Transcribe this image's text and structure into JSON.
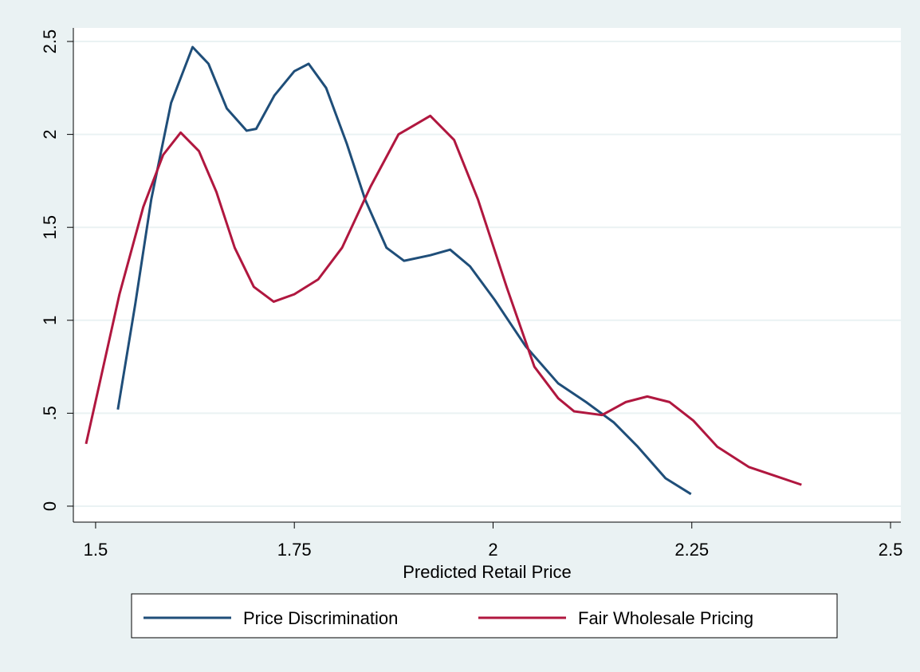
{
  "chart_data": {
    "type": "line",
    "x_label": "Predicted Retail Price",
    "xlim": [
      1.472,
      2.513
    ],
    "xticks": [
      1.5,
      1.75,
      2,
      2.25,
      2.5
    ],
    "ylim": [
      -0.086,
      2.573
    ],
    "yticks": [
      0,
      {
        "value": 0.5,
        "label": ".5"
      },
      1,
      1.5,
      2,
      2.5
    ],
    "grid": true,
    "legend": "bottom",
    "series": [
      {
        "name": "Price Discrimination",
        "color": "#1f4e79",
        "x": [
          1.528,
          1.55,
          1.57,
          1.595,
          1.622,
          1.642,
          1.665,
          1.69,
          1.702,
          1.725,
          1.75,
          1.768,
          1.79,
          1.816,
          1.839,
          1.866,
          1.888,
          1.921,
          1.946,
          1.971,
          2.002,
          2.041,
          2.082,
          2.117,
          2.152,
          2.182,
          2.217,
          2.249
        ],
        "values": [
          0.52,
          1.09,
          1.65,
          2.17,
          2.47,
          2.38,
          2.14,
          2.02,
          2.03,
          2.21,
          2.34,
          2.38,
          2.25,
          1.95,
          1.65,
          1.39,
          1.32,
          1.35,
          1.38,
          1.29,
          1.11,
          0.86,
          0.66,
          0.56,
          0.45,
          0.32,
          0.15,
          0.065
        ]
      },
      {
        "name": "Fair Wholesale Pricing",
        "color": "#b0173f",
        "x": [
          1.488,
          1.505,
          1.53,
          1.56,
          1.585,
          1.607,
          1.63,
          1.652,
          1.675,
          1.699,
          1.724,
          1.75,
          1.78,
          1.81,
          1.846,
          1.881,
          1.921,
          1.951,
          1.981,
          2.017,
          2.052,
          2.082,
          2.102,
          2.137,
          2.167,
          2.194,
          2.222,
          2.252,
          2.282,
          2.322,
          2.357,
          2.388
        ],
        "values": [
          0.335,
          0.66,
          1.14,
          1.61,
          1.89,
          2.01,
          1.91,
          1.69,
          1.39,
          1.18,
          1.1,
          1.14,
          1.22,
          1.39,
          1.72,
          2.0,
          2.1,
          1.97,
          1.65,
          1.18,
          0.75,
          0.58,
          0.51,
          0.49,
          0.56,
          0.59,
          0.56,
          0.46,
          0.32,
          0.21,
          0.16,
          0.115
        ]
      }
    ]
  }
}
